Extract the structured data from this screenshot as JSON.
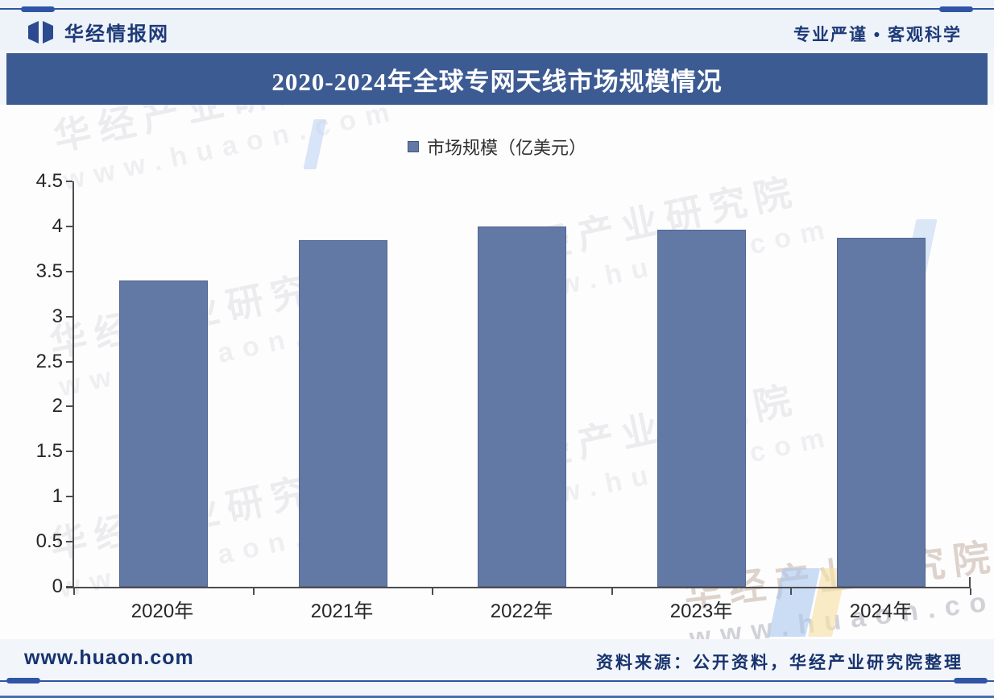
{
  "header": {
    "brand": "华经情报网",
    "slogan": "专业严谨 • 客观科学"
  },
  "title": "2020-2024年全球专网天线市场规模情况",
  "chart_data": {
    "type": "bar",
    "title": "2020-2024年全球专网天线市场规模情况",
    "legend": "市场规模（亿美元）",
    "legend_position": "top-center",
    "categories": [
      "2020年",
      "2021年",
      "2022年",
      "2023年",
      "2024年"
    ],
    "series": [
      {
        "name": "市场规模（亿美元）",
        "values": [
          3.4,
          3.85,
          4.0,
          3.96,
          3.87
        ]
      }
    ],
    "ylim": [
      0,
      4.5
    ],
    "yticks": [
      0,
      0.5,
      1,
      1.5,
      2,
      2.5,
      3,
      3.5,
      4,
      4.5
    ],
    "grid": false,
    "bar_color": "#6279a6"
  },
  "watermark": {
    "line1": "华经产业研究院",
    "line2": "www.huaon.com"
  },
  "footer": {
    "site": "www.huaon.com",
    "source": "资料来源：公开资料，华经产业研究院整理"
  },
  "colors": {
    "accent_blue": "#2f55a4",
    "title_bar": "#3d5b93",
    "bar": "#6279a6",
    "brand_text": "#1d3a78",
    "footer_text": "#17336e",
    "axis": "#4d4d4d"
  }
}
